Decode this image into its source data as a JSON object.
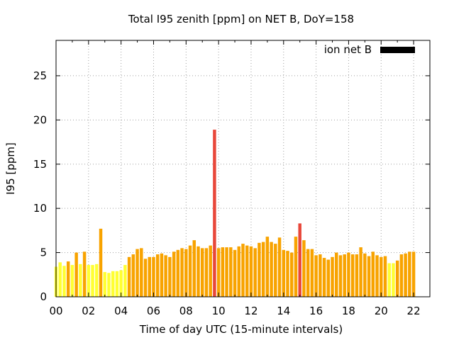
{
  "chart_data": {
    "type": "bar",
    "title": "Total I95 zenith [ppm] on NET B, DoY=158",
    "xlabel": "Time of day UTC (15-minute intervals)",
    "ylabel": "I95 [ppm]",
    "xlim": [
      0,
      23
    ],
    "ylim": [
      0,
      29
    ],
    "xticks": [
      "00",
      "02",
      "04",
      "06",
      "08",
      "10",
      "12",
      "14",
      "16",
      "18",
      "20",
      "22"
    ],
    "yticks": [
      "0",
      "5",
      "10",
      "15",
      "20",
      "25"
    ],
    "grid": true,
    "legend": {
      "position": "top-right",
      "entries": [
        {
          "name": "ion net B",
          "color": "#000000"
        }
      ]
    },
    "colors": {
      "yellow": "#ffff33",
      "orange": "#f8a300",
      "red": "#e8473a"
    },
    "bin_hours": 0.25,
    "values": [
      3.4,
      3.9,
      3.5,
      4.0,
      3.6,
      5.0,
      3.7,
      5.1,
      3.6,
      3.6,
      3.7,
      7.7,
      2.8,
      2.7,
      2.9,
      2.9,
      3.0,
      3.6,
      4.5,
      4.8,
      5.4,
      5.5,
      4.3,
      4.5,
      4.5,
      4.8,
      4.9,
      4.7,
      4.5,
      5.1,
      5.3,
      5.5,
      5.4,
      5.8,
      6.4,
      5.7,
      5.5,
      5.5,
      5.8,
      18.9,
      5.5,
      5.6,
      5.6,
      5.6,
      5.3,
      5.7,
      6.0,
      5.8,
      5.7,
      5.5,
      6.1,
      6.2,
      6.8,
      6.2,
      6.0,
      6.7,
      5.3,
      5.2,
      5.0,
      6.8,
      8.3,
      6.4,
      5.4,
      5.4,
      4.7,
      4.8,
      4.4,
      4.2,
      4.5,
      5.0,
      4.7,
      4.8,
      5.0,
      4.8,
      4.8,
      5.6,
      4.9,
      4.6,
      5.1,
      4.7,
      4.5,
      4.6,
      3.8,
      3.8,
      4.1,
      4.8,
      4.9,
      5.1,
      5.1
    ],
    "color_classes": [
      "yellow",
      "yellow",
      "yellow",
      "orange",
      "yellow",
      "orange",
      "yellow",
      "orange",
      "yellow",
      "yellow",
      "yellow",
      "orange",
      "yellow",
      "yellow",
      "yellow",
      "yellow",
      "yellow",
      "yellow",
      "orange",
      "orange",
      "orange",
      "orange",
      "orange",
      "orange",
      "orange",
      "orange",
      "orange",
      "orange",
      "orange",
      "orange",
      "orange",
      "orange",
      "orange",
      "orange",
      "orange",
      "orange",
      "orange",
      "orange",
      "orange",
      "red",
      "orange",
      "orange",
      "orange",
      "orange",
      "orange",
      "orange",
      "orange",
      "orange",
      "orange",
      "orange",
      "orange",
      "orange",
      "orange",
      "orange",
      "orange",
      "orange",
      "orange",
      "orange",
      "orange",
      "orange",
      "red",
      "orange",
      "orange",
      "orange",
      "orange",
      "orange",
      "orange",
      "orange",
      "orange",
      "orange",
      "orange",
      "orange",
      "orange",
      "orange",
      "orange",
      "orange",
      "orange",
      "orange",
      "orange",
      "orange",
      "orange",
      "orange",
      "yellow",
      "yellow",
      "orange",
      "orange",
      "orange",
      "orange",
      "orange"
    ]
  }
}
